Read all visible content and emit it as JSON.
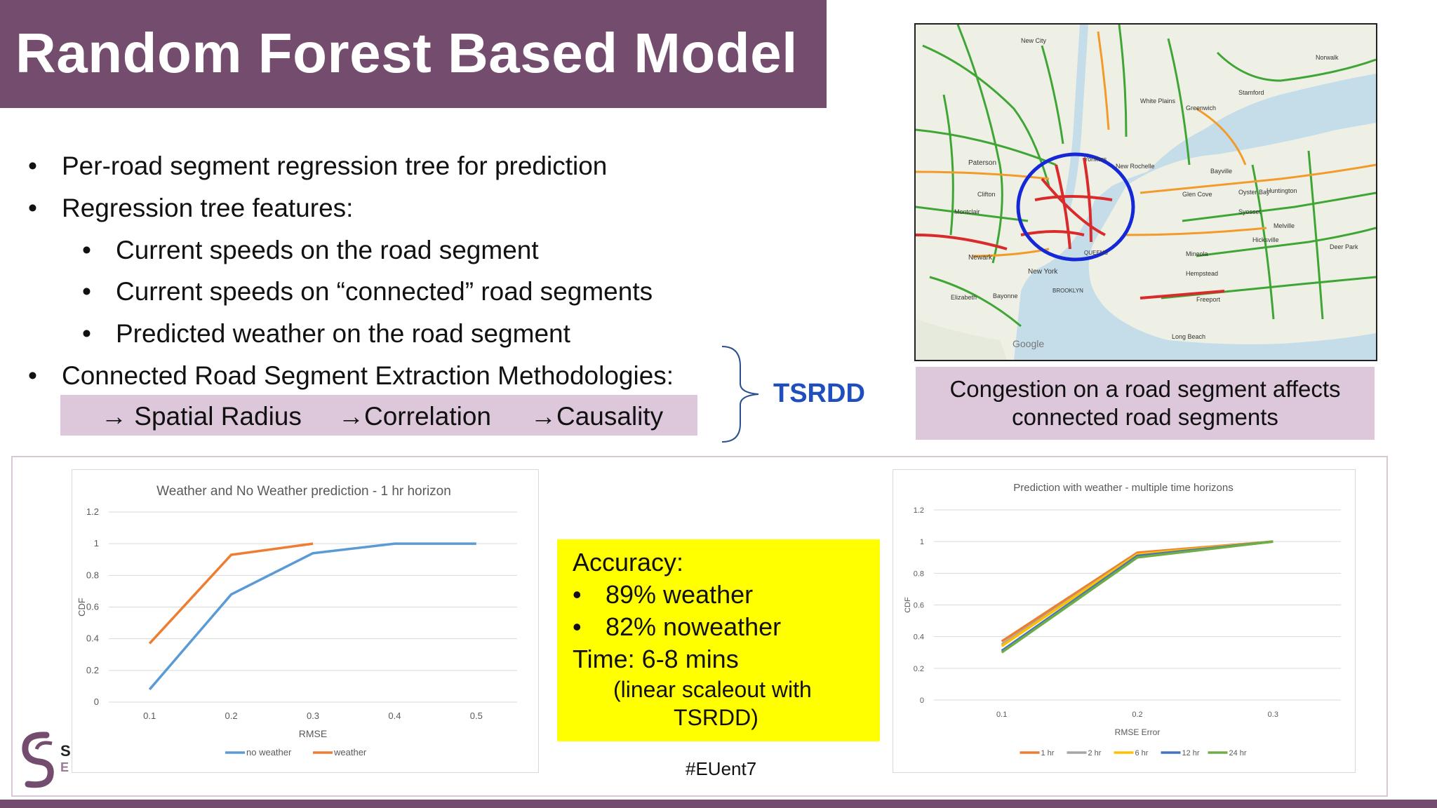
{
  "slide": {
    "title": "Random Forest Based Model",
    "hashtag": "#EUent7",
    "accent": "#744d6e",
    "tsrdd_label": "TSRDD"
  },
  "bullets": [
    {
      "level": 1,
      "text": "Per-road segment regression tree for prediction"
    },
    {
      "level": 1,
      "text": "Regression tree features:"
    },
    {
      "level": 2,
      "text": "Current speeds on the road segment"
    },
    {
      "level": 2,
      "text": "Current speeds on “connected” road segments"
    },
    {
      "level": 2,
      "text": "Predicted weather on the road segment"
    },
    {
      "level": 1,
      "text": "Connected Road Segment Extraction Methodologies:"
    }
  ],
  "methods": [
    "→ Spatial Radius",
    "→Correlation",
    "→Causality"
  ],
  "map": {
    "caption_line1": "Congestion on a road segment affects",
    "caption_line2": "connected road segments",
    "places": [
      "New City",
      "Stamford",
      "Norwalk",
      "White Plains",
      "Greenwich",
      "Paterson",
      "Yonkers",
      "New Rochelle",
      "Clifton",
      "Montclair",
      "Newark",
      "New York",
      "Elizabeth",
      "Bayonne",
      "BROOKLYN",
      "QUEENS",
      "Mineola",
      "Hicksville",
      "Hempstead",
      "Freeport",
      "Long Beach",
      "Huntington",
      "Syosset",
      "Melville",
      "Deer Park",
      "Oyster Bay",
      "Glen Cove",
      "Bayville",
      "Google"
    ]
  },
  "accuracy": {
    "heading": "Accuracy:",
    "item1": "89% weather",
    "item2": "82% noweather",
    "time": "Time: 6-8 mins",
    "note1": "(linear scaleout with",
    "note2": "TSRDD)"
  },
  "logo": {
    "letter1": "S",
    "letter2": "E"
  },
  "chart_data": [
    {
      "type": "line",
      "title": "Weather and No Weather prediction - 1 hr horizon",
      "xlabel": "RMSE",
      "ylabel": "CDF",
      "x_ticks": [
        "0.1",
        "0.2",
        "0.3",
        "0.4",
        "0.5"
      ],
      "y_ticks": [
        "0",
        "0.2",
        "0.4",
        "0.6",
        "0.8",
        "1",
        "1.2"
      ],
      "xlim": [
        0.05,
        0.55
      ],
      "ylim": [
        0,
        1.2
      ],
      "grid": true,
      "legend_position": "bottom",
      "series": [
        {
          "name": "no weather",
          "color": "#5b9bd5",
          "x": [
            0.1,
            0.2,
            0.3,
            0.4,
            0.5
          ],
          "y": [
            0.08,
            0.68,
            0.94,
            1.0,
            1.0
          ]
        },
        {
          "name": "weather",
          "color": "#ed7d31",
          "x": [
            0.1,
            0.2,
            0.3
          ],
          "y": [
            0.37,
            0.93,
            1.0
          ]
        }
      ]
    },
    {
      "type": "line",
      "title": "Prediction with weather - multiple time horizons",
      "xlabel": "RMSE Error",
      "ylabel": "CDF",
      "x_ticks": [
        "0.1",
        "0.2",
        "0.3"
      ],
      "y_ticks": [
        "0",
        "0.2",
        "0.4",
        "0.6",
        "0.8",
        "1",
        "1.2"
      ],
      "xlim": [
        0.05,
        0.35
      ],
      "ylim": [
        0,
        1.2
      ],
      "grid": true,
      "legend_position": "bottom",
      "series": [
        {
          "name": "1 hr",
          "color": "#ed7d31",
          "x": [
            0.1,
            0.2,
            0.3
          ],
          "y": [
            0.37,
            0.93,
            1.0
          ]
        },
        {
          "name": "2 hr",
          "color": "#a5a5a5",
          "x": [
            0.1,
            0.2,
            0.3
          ],
          "y": [
            0.35,
            0.92,
            1.0
          ]
        },
        {
          "name": "6 hr",
          "color": "#ffc000",
          "x": [
            0.1,
            0.2,
            0.3
          ],
          "y": [
            0.34,
            0.92,
            1.0
          ]
        },
        {
          "name": "12 hr",
          "color": "#4472c4",
          "x": [
            0.1,
            0.2,
            0.3
          ],
          "y": [
            0.31,
            0.91,
            1.0
          ]
        },
        {
          "name": "24 hr",
          "color": "#70ad47",
          "x": [
            0.1,
            0.2,
            0.3
          ],
          "y": [
            0.3,
            0.9,
            1.0
          ]
        }
      ]
    }
  ]
}
